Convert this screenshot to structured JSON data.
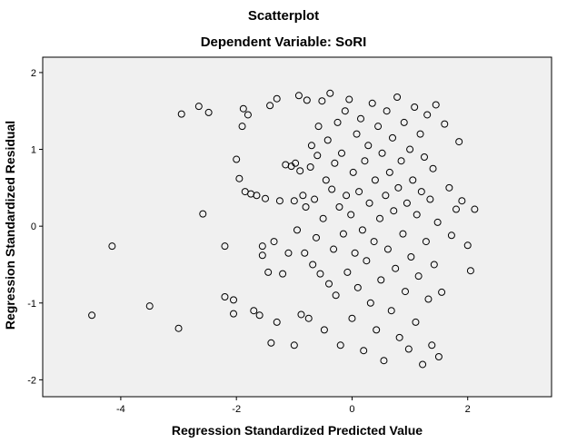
{
  "chart_data": {
    "type": "scatter",
    "title": "Scatterplot",
    "subtitle": "Dependent Variable: SoRI",
    "xlabel": "Regression Standardized Predicted Value",
    "ylabel": "Regression Standardized Residual",
    "xlim": [
      -5.35,
      3.45
    ],
    "ylim": [
      -2.22,
      2.2
    ],
    "xticks": [
      -4,
      -2,
      0,
      2
    ],
    "xtick_labels": [
      "-4",
      "-2",
      "0",
      "2"
    ],
    "yticks": [
      -2,
      -1,
      0,
      1,
      2
    ],
    "ytick_labels": [
      "-2",
      "-1",
      "0",
      "1",
      "2"
    ],
    "grid": false,
    "plot_background": "#f0f0f0",
    "marker_color": "#000000",
    "marker_fill": "none",
    "points": [
      [
        -4.5,
        -1.16
      ],
      [
        -4.15,
        -0.26
      ],
      [
        -3.5,
        -1.04
      ],
      [
        -3.0,
        -1.33
      ],
      [
        -2.95,
        1.46
      ],
      [
        -2.65,
        1.56
      ],
      [
        -2.58,
        0.16
      ],
      [
        -2.48,
        1.48
      ],
      [
        -2.2,
        -0.92
      ],
      [
        -2.2,
        -0.26
      ],
      [
        -2.05,
        -1.14
      ],
      [
        -2.05,
        -0.96
      ],
      [
        -2.0,
        0.87
      ],
      [
        -1.95,
        0.62
      ],
      [
        -1.9,
        1.3
      ],
      [
        -1.88,
        1.53
      ],
      [
        -1.85,
        0.45
      ],
      [
        -1.8,
        1.45
      ],
      [
        -1.75,
        0.42
      ],
      [
        -1.7,
        -1.1
      ],
      [
        -1.65,
        0.4
      ],
      [
        -1.6,
        -1.16
      ],
      [
        -1.55,
        -0.38
      ],
      [
        -1.55,
        -0.26
      ],
      [
        -1.5,
        0.36
      ],
      [
        -1.45,
        -0.6
      ],
      [
        -1.42,
        1.57
      ],
      [
        -1.4,
        -1.52
      ],
      [
        -1.35,
        -0.2
      ],
      [
        -1.3,
        1.66
      ],
      [
        -1.3,
        -1.25
      ],
      [
        -1.25,
        0.33
      ],
      [
        -1.2,
        -0.62
      ],
      [
        -1.15,
        0.8
      ],
      [
        -1.1,
        -0.35
      ],
      [
        -1.05,
        0.78
      ],
      [
        -1.0,
        0.33
      ],
      [
        -1.0,
        -1.55
      ],
      [
        -0.98,
        0.82
      ],
      [
        -0.95,
        -0.05
      ],
      [
        -0.92,
        1.7
      ],
      [
        -0.9,
        0.72
      ],
      [
        -0.88,
        -1.15
      ],
      [
        -0.85,
        0.4
      ],
      [
        -0.82,
        -0.35
      ],
      [
        -0.8,
        0.25
      ],
      [
        -0.78,
        1.64
      ],
      [
        -0.75,
        -1.2
      ],
      [
        -0.72,
        0.77
      ],
      [
        -0.7,
        1.05
      ],
      [
        -0.68,
        -0.5
      ],
      [
        -0.65,
        0.35
      ],
      [
        -0.62,
        -0.15
      ],
      [
        -0.6,
        0.92
      ],
      [
        -0.58,
        1.3
      ],
      [
        -0.55,
        -0.62
      ],
      [
        -0.52,
        1.63
      ],
      [
        -0.5,
        0.1
      ],
      [
        -0.48,
        -1.35
      ],
      [
        -0.45,
        0.6
      ],
      [
        -0.42,
        1.12
      ],
      [
        -0.4,
        -0.75
      ],
      [
        -0.38,
        1.73
      ],
      [
        -0.35,
        0.48
      ],
      [
        -0.32,
        -0.3
      ],
      [
        -0.3,
        0.82
      ],
      [
        -0.28,
        -0.9
      ],
      [
        -0.25,
        1.35
      ],
      [
        -0.22,
        0.25
      ],
      [
        -0.2,
        -1.55
      ],
      [
        -0.18,
        0.95
      ],
      [
        -0.15,
        -0.1
      ],
      [
        -0.12,
        1.5
      ],
      [
        -0.1,
        0.4
      ],
      [
        -0.08,
        -0.6
      ],
      [
        -0.05,
        1.65
      ],
      [
        -0.02,
        0.15
      ],
      [
        0.0,
        -1.2
      ],
      [
        0.02,
        0.7
      ],
      [
        0.05,
        -0.35
      ],
      [
        0.08,
        1.2
      ],
      [
        0.1,
        -0.8
      ],
      [
        0.12,
        0.45
      ],
      [
        0.15,
        1.4
      ],
      [
        0.18,
        -0.05
      ],
      [
        0.2,
        -1.62
      ],
      [
        0.22,
        0.85
      ],
      [
        0.25,
        -0.45
      ],
      [
        0.28,
        1.05
      ],
      [
        0.3,
        0.3
      ],
      [
        0.32,
        -1.0
      ],
      [
        0.35,
        1.6
      ],
      [
        0.38,
        -0.2
      ],
      [
        0.4,
        0.6
      ],
      [
        0.42,
        -1.35
      ],
      [
        0.45,
        1.3
      ],
      [
        0.48,
        0.1
      ],
      [
        0.5,
        -0.7
      ],
      [
        0.52,
        0.95
      ],
      [
        0.55,
        -1.75
      ],
      [
        0.58,
        0.4
      ],
      [
        0.6,
        1.5
      ],
      [
        0.62,
        -0.3
      ],
      [
        0.65,
        0.7
      ],
      [
        0.68,
        -1.1
      ],
      [
        0.7,
        1.15
      ],
      [
        0.72,
        0.2
      ],
      [
        0.75,
        -0.55
      ],
      [
        0.78,
        1.68
      ],
      [
        0.8,
        0.5
      ],
      [
        0.82,
        -1.45
      ],
      [
        0.85,
        0.85
      ],
      [
        0.88,
        -0.1
      ],
      [
        0.9,
        1.35
      ],
      [
        0.92,
        -0.85
      ],
      [
        0.95,
        0.3
      ],
      [
        0.98,
        -1.6
      ],
      [
        1.0,
        1.0
      ],
      [
        1.02,
        -0.4
      ],
      [
        1.05,
        0.6
      ],
      [
        1.08,
        1.55
      ],
      [
        1.1,
        -1.25
      ],
      [
        1.12,
        0.15
      ],
      [
        1.15,
        -0.65
      ],
      [
        1.18,
        1.2
      ],
      [
        1.2,
        0.45
      ],
      [
        1.22,
        -1.8
      ],
      [
        1.25,
        0.9
      ],
      [
        1.28,
        -0.2
      ],
      [
        1.3,
        1.45
      ],
      [
        1.32,
        -0.95
      ],
      [
        1.35,
        0.35
      ],
      [
        1.38,
        -1.55
      ],
      [
        1.4,
        0.75
      ],
      [
        1.42,
        -0.5
      ],
      [
        1.45,
        1.58
      ],
      [
        1.48,
        0.05
      ],
      [
        1.5,
        -1.7
      ],
      [
        1.55,
        -0.86
      ],
      [
        1.6,
        1.33
      ],
      [
        1.68,
        0.5
      ],
      [
        1.72,
        -0.12
      ],
      [
        1.8,
        0.22
      ],
      [
        1.85,
        1.1
      ],
      [
        1.9,
        0.33
      ],
      [
        2.0,
        -0.25
      ],
      [
        2.05,
        -0.58
      ],
      [
        2.12,
        0.22
      ]
    ]
  }
}
